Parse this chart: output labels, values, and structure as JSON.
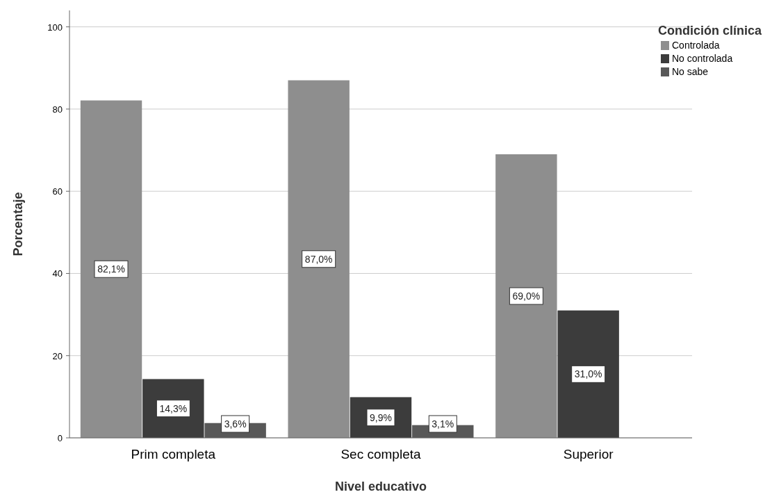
{
  "chart_data": {
    "type": "bar",
    "xlabel": "Nivel educativo",
    "ylabel": "Porcentaje",
    "legend_title": "Condición clínica",
    "categories": [
      "Prim completa",
      "Sec completa",
      "Superior"
    ],
    "series": [
      {
        "name": "Controlada",
        "color": "#8e8e8e",
        "values": [
          82.1,
          87.0,
          69.0
        ],
        "value_labels": [
          "82,1%",
          "87,0%",
          "69,0%"
        ]
      },
      {
        "name": "No controlada",
        "color": "#3c3c3c",
        "values": [
          14.3,
          9.9,
          31.0
        ],
        "value_labels": [
          "14,3%",
          "9,9%",
          "31,0%"
        ]
      },
      {
        "name": "No sabe",
        "color": "#585858",
        "values": [
          3.6,
          3.1,
          null
        ],
        "value_labels": [
          "3,6%",
          "3,1%",
          null
        ]
      }
    ],
    "ylim": [
      0,
      104
    ],
    "yticks": [
      0,
      20,
      40,
      60,
      80,
      100
    ],
    "grid": "y",
    "legend": "top right"
  }
}
